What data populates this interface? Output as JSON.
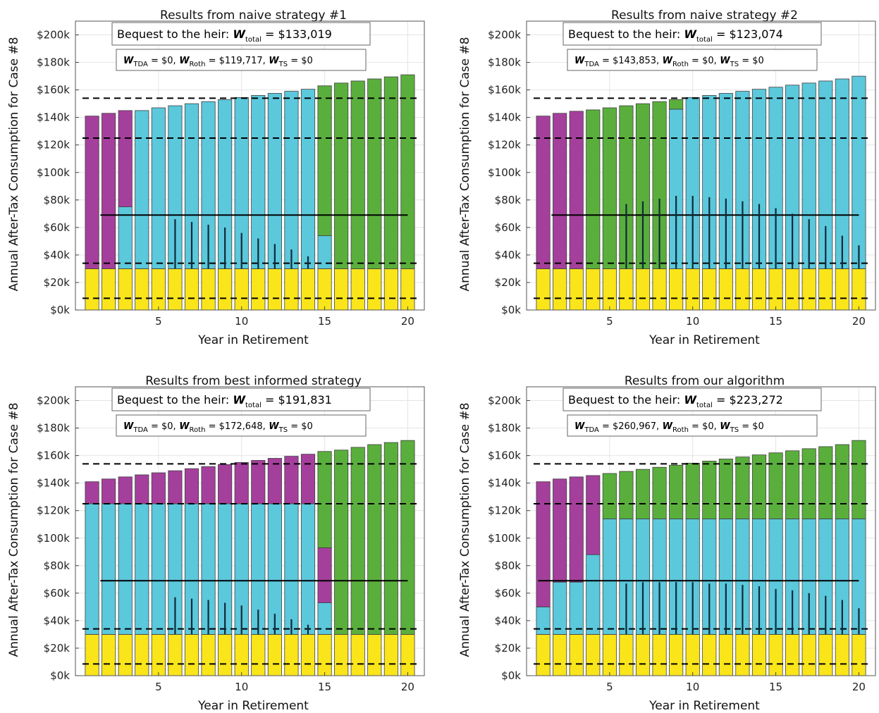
{
  "colors": {
    "yellow": "#f9e51a",
    "cyan": "#5bc8dc",
    "magenta": "#a53f9c",
    "green": "#5aaf3c",
    "bar_edge": "#404040",
    "grid": "#e4e4e4"
  },
  "chart_data": [
    {
      "type": "bar",
      "stacked": true,
      "title": "Results from naive strategy #1",
      "xlabel": "Year in Retirement",
      "ylabel": "Annual After-Tax Consumption for Case #8",
      "xlim": [
        0,
        21
      ],
      "ylim": [
        0,
        210000
      ],
      "xticks": [
        5,
        10,
        15,
        20
      ],
      "xtick_labels": [
        "5",
        "10",
        "15",
        "20"
      ],
      "yticks": [
        0,
        20000,
        40000,
        60000,
        80000,
        100000,
        120000,
        140000,
        160000,
        180000,
        200000
      ],
      "ytick_labels": [
        "$0k",
        "$20k",
        "$40k",
        "$60k",
        "$80k",
        "$100k",
        "$120k",
        "$140k",
        "$160k",
        "$180k",
        "$200k"
      ],
      "grid": true,
      "bequest": {
        "label": "Bequest to the heir:",
        "total": "= $133,019"
      },
      "breakdown": {
        "tda": "= $0,",
        "roth": "= $119,717,",
        "ts": "= $0"
      },
      "x": [
        1,
        2,
        3,
        4,
        5,
        6,
        7,
        8,
        9,
        10,
        11,
        12,
        13,
        14,
        15,
        16,
        17,
        18,
        19,
        20
      ],
      "series": [
        {
          "color": "yellow",
          "values": [
            30000,
            30000,
            30000,
            30000,
            30000,
            30000,
            30000,
            30000,
            30000,
            30000,
            30000,
            30000,
            30000,
            30000,
            30000,
            30000,
            30000,
            30000,
            30000,
            30000
          ]
        },
        {
          "color": "cyan",
          "values": [
            0,
            0,
            45000,
            115000,
            117000,
            118500,
            120000,
            121500,
            123000,
            124500,
            126000,
            127500,
            129000,
            130500,
            24000,
            0,
            0,
            0,
            0,
            0
          ]
        },
        {
          "color": "magenta",
          "values": [
            111000,
            113000,
            70000,
            0,
            0,
            0,
            0,
            0,
            0,
            0,
            0,
            0,
            0,
            0,
            0,
            0,
            0,
            0,
            0,
            0
          ]
        },
        {
          "color": "green",
          "values": [
            0,
            0,
            0,
            0,
            0,
            0,
            0,
            0,
            0,
            0,
            0,
            0,
            0,
            0,
            109000,
            135000,
            136500,
            138000,
            139500,
            141000
          ]
        }
      ],
      "hlines": [
        {
          "y": 154000,
          "style": "dashed"
        },
        {
          "y": 125000,
          "style": "dashed"
        },
        {
          "y": 34000,
          "style": "dashed"
        },
        {
          "y": 8500,
          "style": "dashed"
        },
        {
          "y": 69000,
          "style": "solid",
          "x_from": 1.5,
          "x_to": 20
        }
      ],
      "spikes": [
        {
          "x": 6,
          "y": 66000
        },
        {
          "x": 7,
          "y": 64000
        },
        {
          "x": 8,
          "y": 62000
        },
        {
          "x": 9,
          "y": 60000
        },
        {
          "x": 10,
          "y": 56000
        },
        {
          "x": 11,
          "y": 52000
        },
        {
          "x": 12,
          "y": 48000
        },
        {
          "x": 13,
          "y": 44000
        },
        {
          "x": 14,
          "y": 39000
        }
      ]
    },
    {
      "type": "bar",
      "stacked": true,
      "title": "Results from naive strategy #2",
      "xlabel": "Year in Retirement",
      "ylabel": "Annual After-Tax Consumption for Case #8",
      "xlim": [
        0,
        21
      ],
      "ylim": [
        0,
        210000
      ],
      "xticks": [
        5,
        10,
        15,
        20
      ],
      "xtick_labels": [
        "5",
        "10",
        "15",
        "20"
      ],
      "yticks": [
        0,
        20000,
        40000,
        60000,
        80000,
        100000,
        120000,
        140000,
        160000,
        180000,
        200000
      ],
      "ytick_labels": [
        "$0k",
        "$20k",
        "$40k",
        "$60k",
        "$80k",
        "$100k",
        "$120k",
        "$140k",
        "$160k",
        "$180k",
        "$200k"
      ],
      "grid": true,
      "bequest": {
        "label": "Bequest to the heir:",
        "total": "= $123,074"
      },
      "breakdown": {
        "tda": "= $143,853,",
        "roth": "= $0,",
        "ts": "= $0"
      },
      "x": [
        1,
        2,
        3,
        4,
        5,
        6,
        7,
        8,
        9,
        10,
        11,
        12,
        13,
        14,
        15,
        16,
        17,
        18,
        19,
        20
      ],
      "series": [
        {
          "color": "yellow",
          "values": [
            30000,
            30000,
            30000,
            30000,
            30000,
            30000,
            30000,
            30000,
            30000,
            30000,
            30000,
            30000,
            30000,
            30000,
            30000,
            30000,
            30000,
            30000,
            30000,
            30000
          ]
        },
        {
          "color": "cyan",
          "values": [
            0,
            0,
            0,
            0,
            0,
            0,
            0,
            0,
            116000,
            124500,
            126000,
            127500,
            129000,
            130500,
            132000,
            133500,
            135000,
            136500,
            138000,
            140000
          ]
        },
        {
          "color": "magenta",
          "values": [
            111000,
            113000,
            114500,
            0,
            0,
            0,
            0,
            0,
            0,
            0,
            0,
            0,
            0,
            0,
            0,
            0,
            0,
            0,
            0,
            0
          ]
        },
        {
          "color": "green",
          "values": [
            0,
            0,
            0,
            115500,
            117000,
            118500,
            120000,
            121500,
            7000,
            0,
            0,
            0,
            0,
            0,
            0,
            0,
            0,
            0,
            0,
            0
          ]
        }
      ],
      "hlines": [
        {
          "y": 154000,
          "style": "dashed"
        },
        {
          "y": 125000,
          "style": "dashed"
        },
        {
          "y": 34000,
          "style": "dashed"
        },
        {
          "y": 8500,
          "style": "dashed"
        },
        {
          "y": 69000,
          "style": "solid",
          "x_from": 1.5,
          "x_to": 20
        }
      ],
      "spikes": [
        {
          "x": 6,
          "y": 77000
        },
        {
          "x": 7,
          "y": 79000
        },
        {
          "x": 8,
          "y": 81000
        },
        {
          "x": 9,
          "y": 83000
        },
        {
          "x": 10,
          "y": 83000
        },
        {
          "x": 11,
          "y": 82000
        },
        {
          "x": 12,
          "y": 81000
        },
        {
          "x": 13,
          "y": 79000
        },
        {
          "x": 14,
          "y": 77000
        },
        {
          "x": 15,
          "y": 74000
        },
        {
          "x": 16,
          "y": 70000
        },
        {
          "x": 17,
          "y": 66000
        },
        {
          "x": 18,
          "y": 61000
        },
        {
          "x": 19,
          "y": 54000
        },
        {
          "x": 20,
          "y": 47000
        }
      ]
    },
    {
      "type": "bar",
      "stacked": true,
      "title": "Results from best informed strategy",
      "xlabel": "Year in Retirement",
      "ylabel": "Annual After-Tax Consumption for Case #8",
      "xlim": [
        0,
        21
      ],
      "ylim": [
        0,
        210000
      ],
      "xticks": [
        5,
        10,
        15,
        20
      ],
      "xtick_labels": [
        "5",
        "10",
        "15",
        "20"
      ],
      "yticks": [
        0,
        20000,
        40000,
        60000,
        80000,
        100000,
        120000,
        140000,
        160000,
        180000,
        200000
      ],
      "ytick_labels": [
        "$0k",
        "$20k",
        "$40k",
        "$60k",
        "$80k",
        "$100k",
        "$120k",
        "$140k",
        "$160k",
        "$180k",
        "$200k"
      ],
      "grid": true,
      "bequest": {
        "label": "Bequest to the heir:",
        "total": "= $191,831"
      },
      "breakdown": {
        "tda": "= $0,",
        "roth": "= $172,648,",
        "ts": "= $0"
      },
      "x": [
        1,
        2,
        3,
        4,
        5,
        6,
        7,
        8,
        9,
        10,
        11,
        12,
        13,
        14,
        15,
        16,
        17,
        18,
        19,
        20
      ],
      "series": [
        {
          "color": "yellow",
          "values": [
            30000,
            30000,
            30000,
            30000,
            30000,
            30000,
            30000,
            30000,
            30000,
            30000,
            30000,
            30000,
            30000,
            30000,
            30000,
            30000,
            30000,
            30000,
            30000,
            30000
          ]
        },
        {
          "color": "cyan",
          "values": [
            95000,
            95000,
            95000,
            95000,
            95000,
            95000,
            95000,
            95000,
            95000,
            95000,
            95000,
            95000,
            95000,
            95000,
            23000,
            0,
            0,
            0,
            0,
            0
          ]
        },
        {
          "color": "magenta",
          "values": [
            16000,
            18000,
            19500,
            21000,
            22500,
            24000,
            25500,
            27000,
            28500,
            30000,
            31500,
            33000,
            34500,
            36000,
            40000,
            0,
            0,
            0,
            0,
            0
          ]
        },
        {
          "color": "green",
          "values": [
            0,
            0,
            0,
            0,
            0,
            0,
            0,
            0,
            0,
            0,
            0,
            0,
            0,
            0,
            70000,
            134000,
            136000,
            138000,
            139500,
            141000
          ]
        }
      ],
      "hlines": [
        {
          "y": 154000,
          "style": "dashed"
        },
        {
          "y": 125000,
          "style": "dashed"
        },
        {
          "y": 34000,
          "style": "dashed"
        },
        {
          "y": 8500,
          "style": "dashed"
        },
        {
          "y": 69000,
          "style": "solid",
          "x_from": 1.5,
          "x_to": 20
        }
      ],
      "spikes": [
        {
          "x": 6,
          "y": 57000
        },
        {
          "x": 7,
          "y": 56000
        },
        {
          "x": 8,
          "y": 55000
        },
        {
          "x": 9,
          "y": 53000
        },
        {
          "x": 10,
          "y": 51000
        },
        {
          "x": 11,
          "y": 48000
        },
        {
          "x": 12,
          "y": 45000
        },
        {
          "x": 13,
          "y": 41000
        },
        {
          "x": 14,
          "y": 37000
        }
      ]
    },
    {
      "type": "bar",
      "stacked": true,
      "title": "Results from our algorithm",
      "xlabel": "Year in Retirement",
      "ylabel": "Annual After-Tax Consumption for Case #8",
      "xlim": [
        0,
        21
      ],
      "ylim": [
        0,
        210000
      ],
      "xticks": [
        5,
        10,
        15,
        20
      ],
      "xtick_labels": [
        "5",
        "10",
        "15",
        "20"
      ],
      "yticks": [
        0,
        20000,
        40000,
        60000,
        80000,
        100000,
        120000,
        140000,
        160000,
        180000,
        200000
      ],
      "ytick_labels": [
        "$0k",
        "$20k",
        "$40k",
        "$60k",
        "$80k",
        "$100k",
        "$120k",
        "$140k",
        "$160k",
        "$180k",
        "$200k"
      ],
      "grid": true,
      "bequest": {
        "label": "Bequest to the heir:",
        "total": "= $223,272"
      },
      "breakdown": {
        "tda": "= $260,967,",
        "roth": "= $0,",
        "ts": "= $0"
      },
      "x": [
        1,
        2,
        3,
        4,
        5,
        6,
        7,
        8,
        9,
        10,
        11,
        12,
        13,
        14,
        15,
        16,
        17,
        18,
        19,
        20
      ],
      "series": [
        {
          "color": "yellow",
          "values": [
            30000,
            30000,
            30000,
            30000,
            30000,
            30000,
            30000,
            30000,
            30000,
            30000,
            30000,
            30000,
            30000,
            30000,
            30000,
            30000,
            30000,
            30000,
            30000,
            30000
          ]
        },
        {
          "color": "cyan",
          "values": [
            20000,
            38000,
            38000,
            58000,
            84000,
            84000,
            84000,
            84000,
            84000,
            84000,
            84000,
            84000,
            84000,
            84000,
            84000,
            84000,
            84000,
            84000,
            84000,
            84000
          ]
        },
        {
          "color": "magenta",
          "values": [
            91000,
            75000,
            76500,
            57500,
            0,
            0,
            0,
            0,
            0,
            0,
            0,
            0,
            0,
            0,
            0,
            0,
            0,
            0,
            0,
            0
          ]
        },
        {
          "color": "green",
          "values": [
            0,
            0,
            0,
            0,
            33000,
            34500,
            36000,
            37500,
            39000,
            40500,
            42000,
            43500,
            45000,
            46500,
            48000,
            49500,
            51000,
            52500,
            54000,
            57000
          ]
        }
      ],
      "hlines": [
        {
          "y": 154000,
          "style": "dashed"
        },
        {
          "y": 125000,
          "style": "dashed"
        },
        {
          "y": 34000,
          "style": "dashed"
        },
        {
          "y": 8500,
          "style": "dashed"
        },
        {
          "y": 69000,
          "style": "solid",
          "x_from": 0.7,
          "x_to": 20
        }
      ],
      "spikes": [
        {
          "x": 6,
          "y": 67000
        },
        {
          "x": 7,
          "y": 68000
        },
        {
          "x": 8,
          "y": 68000
        },
        {
          "x": 9,
          "y": 68000
        },
        {
          "x": 10,
          "y": 68000
        },
        {
          "x": 11,
          "y": 67000
        },
        {
          "x": 12,
          "y": 67000
        },
        {
          "x": 13,
          "y": 66000
        },
        {
          "x": 14,
          "y": 65000
        },
        {
          "x": 15,
          "y": 63000
        },
        {
          "x": 16,
          "y": 62000
        },
        {
          "x": 17,
          "y": 60000
        },
        {
          "x": 18,
          "y": 58000
        },
        {
          "x": 19,
          "y": 55000
        },
        {
          "x": 20,
          "y": 49000
        }
      ]
    }
  ]
}
